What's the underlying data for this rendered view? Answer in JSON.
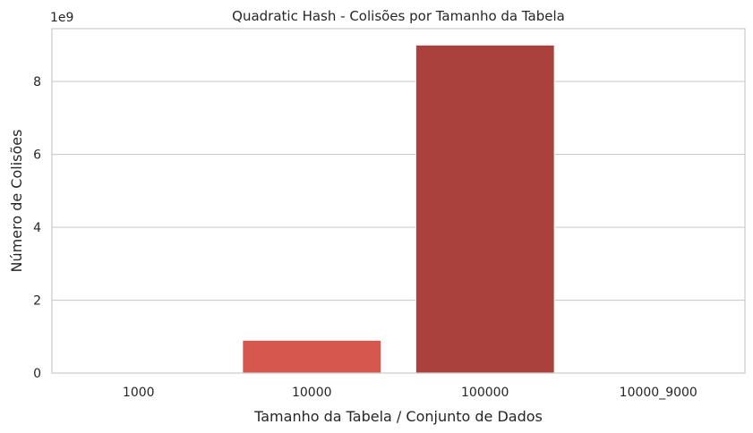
{
  "chart_data": {
    "type": "bar",
    "title": "Quadratic Hash - Colisões por Tamanho da Tabela",
    "xlabel": "Tamanho da Tabela / Conjunto de Dados",
    "ylabel": "Número de Colisões",
    "scale_label": "1e9",
    "categories": [
      "1000",
      "10000",
      "100000",
      "10000_9000"
    ],
    "values": [
      9000000,
      900000000,
      9000000000,
      9000000
    ],
    "ylim": [
      0,
      9450000000
    ],
    "yticks": [
      0,
      2,
      4,
      6,
      8
    ],
    "ytick_multiplier": 1000000000,
    "colors": [
      "#ee7d6e",
      "#d5574e",
      "#ab413c",
      "#7c2f2d"
    ],
    "grid": true,
    "legend": "none"
  }
}
